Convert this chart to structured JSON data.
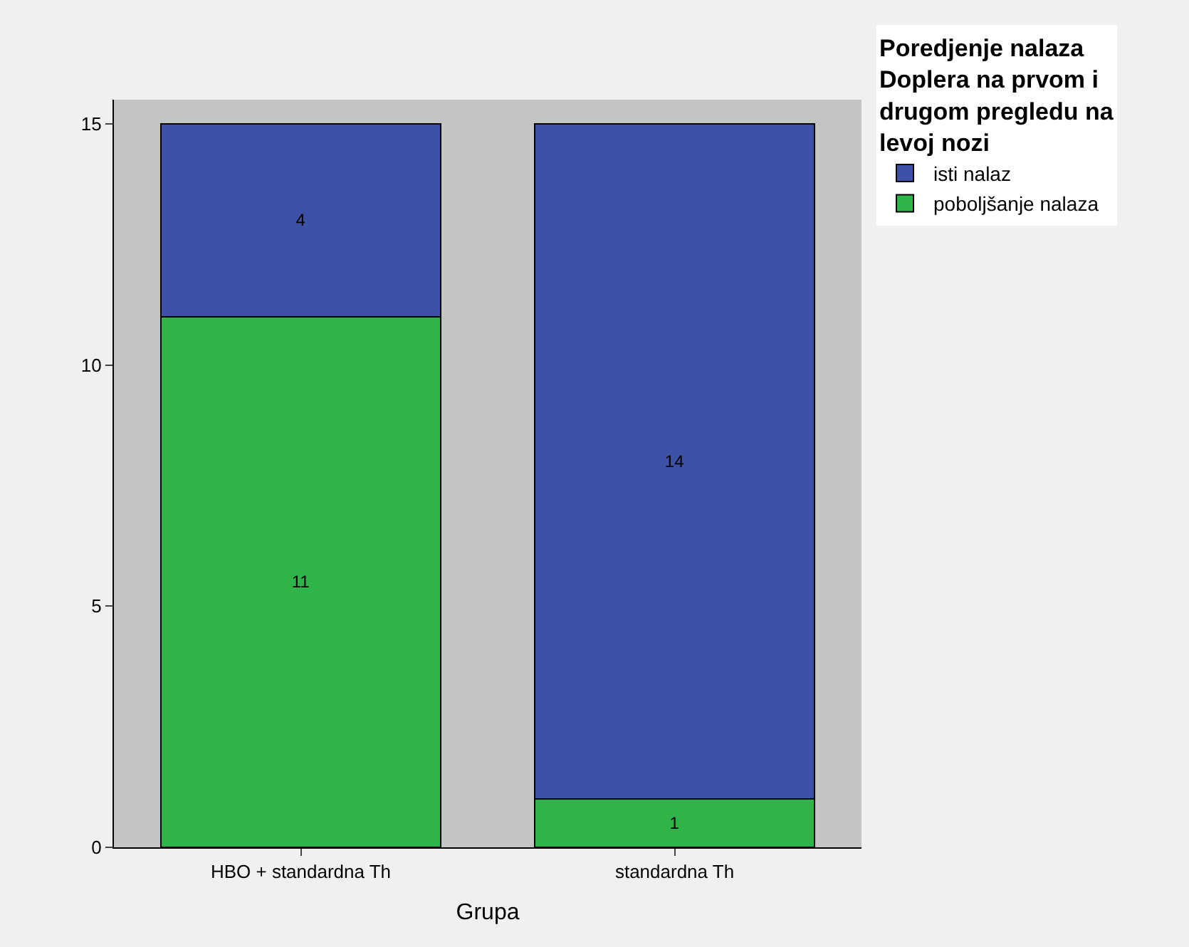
{
  "chart_data": {
    "type": "bar",
    "stacked": true,
    "xlabel": "Grupa",
    "legend_title": "Poredjenje nalaza Doplera na prvom i drugom pregledu na levoj nozi",
    "legend": "top right",
    "data_labels": true,
    "grid": false,
    "categories": [
      "HBO + standardna Th",
      "standardna Th"
    ],
    "ylim": [
      0,
      15.5
    ],
    "yticks": [
      0,
      5,
      10,
      15
    ],
    "series": [
      {
        "name": "poboljšanje nalaza",
        "color": "#2fb44a",
        "values": [
          11,
          1
        ]
      },
      {
        "name": "isti nalaz",
        "color": "#3d52a6",
        "values": [
          4,
          14
        ]
      }
    ]
  }
}
